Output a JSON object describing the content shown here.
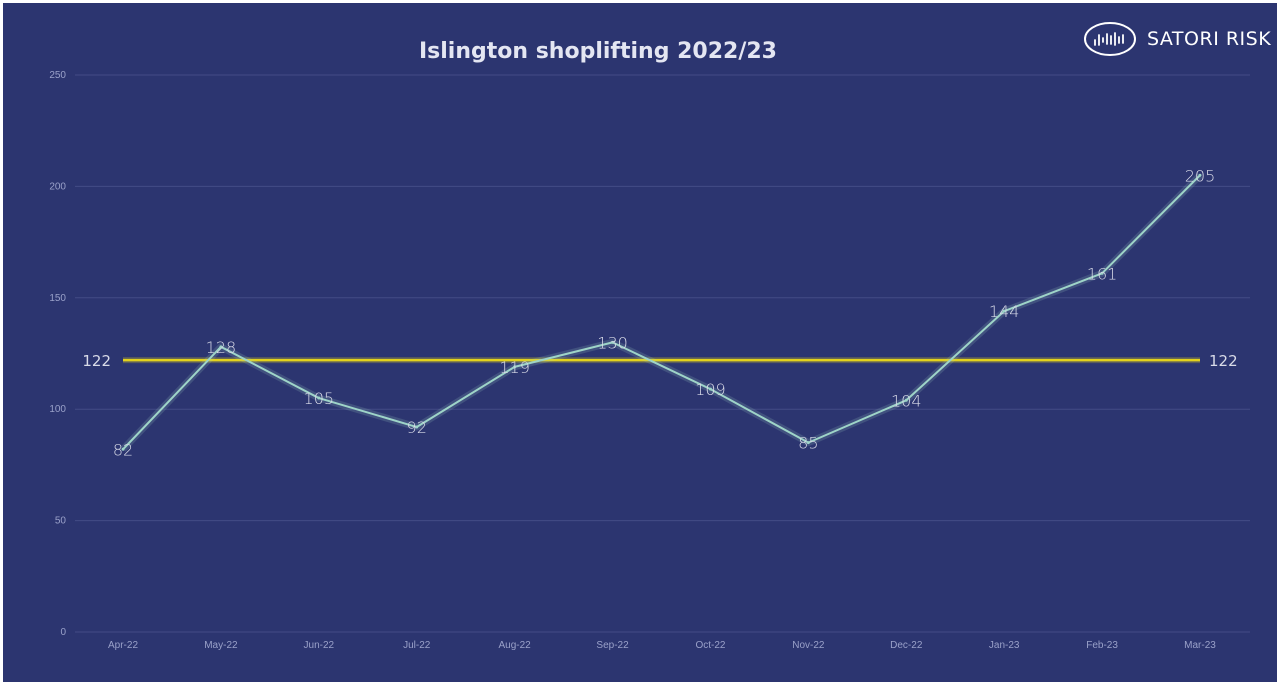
{
  "brand": {
    "name": "SATORI RISK",
    "logo_icon": "satori-risk-logo-icon"
  },
  "colors": {
    "background": "#2c3570",
    "line": "#9ed4c8",
    "reference_line": "#e3d21c",
    "grid": "#434c86"
  },
  "chart_data": {
    "type": "line",
    "title": "Islington shoplifting 2022/23",
    "xlabel": "",
    "ylabel": "",
    "ylim": [
      0,
      250
    ],
    "yticks": [
      0,
      50,
      100,
      150,
      200,
      250
    ],
    "grid": true,
    "categories": [
      "Apr-22",
      "May-22",
      "Jun-22",
      "Jul-22",
      "Aug-22",
      "Sep-22",
      "Oct-22",
      "Nov-22",
      "Dec-22",
      "Jan-23",
      "Feb-23",
      "Mar-23"
    ],
    "series": [
      {
        "values": [
          82,
          128,
          105,
          92,
          119,
          130,
          109,
          85,
          104,
          144,
          161,
          205
        ],
        "data_labels": true
      }
    ],
    "reference_line": {
      "value": 122,
      "label": "122"
    }
  }
}
